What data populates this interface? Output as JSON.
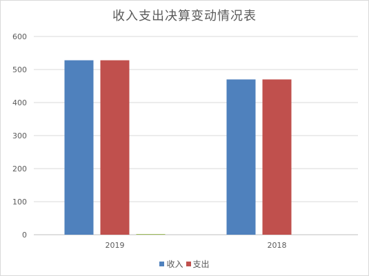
{
  "chart_data": {
    "type": "bar",
    "title": "收入支出决算变动情况表",
    "categories": [
      "2019",
      "2018"
    ],
    "series": [
      {
        "name": "收入",
        "values": [
          528,
          470
        ],
        "color": "#4F81BD"
      },
      {
        "name": "支出",
        "values": [
          528,
          470
        ],
        "color": "#C0504D"
      },
      {
        "values": [
          2,
          0
        ],
        "color": "#9BBB59"
      }
    ],
    "xlabel": "",
    "ylabel": "",
    "ylim": [
      0,
      600
    ],
    "yticks": [
      "0",
      "100",
      "200",
      "300",
      "400",
      "500",
      "600"
    ],
    "grid": true,
    "legend_position": "bottom"
  }
}
